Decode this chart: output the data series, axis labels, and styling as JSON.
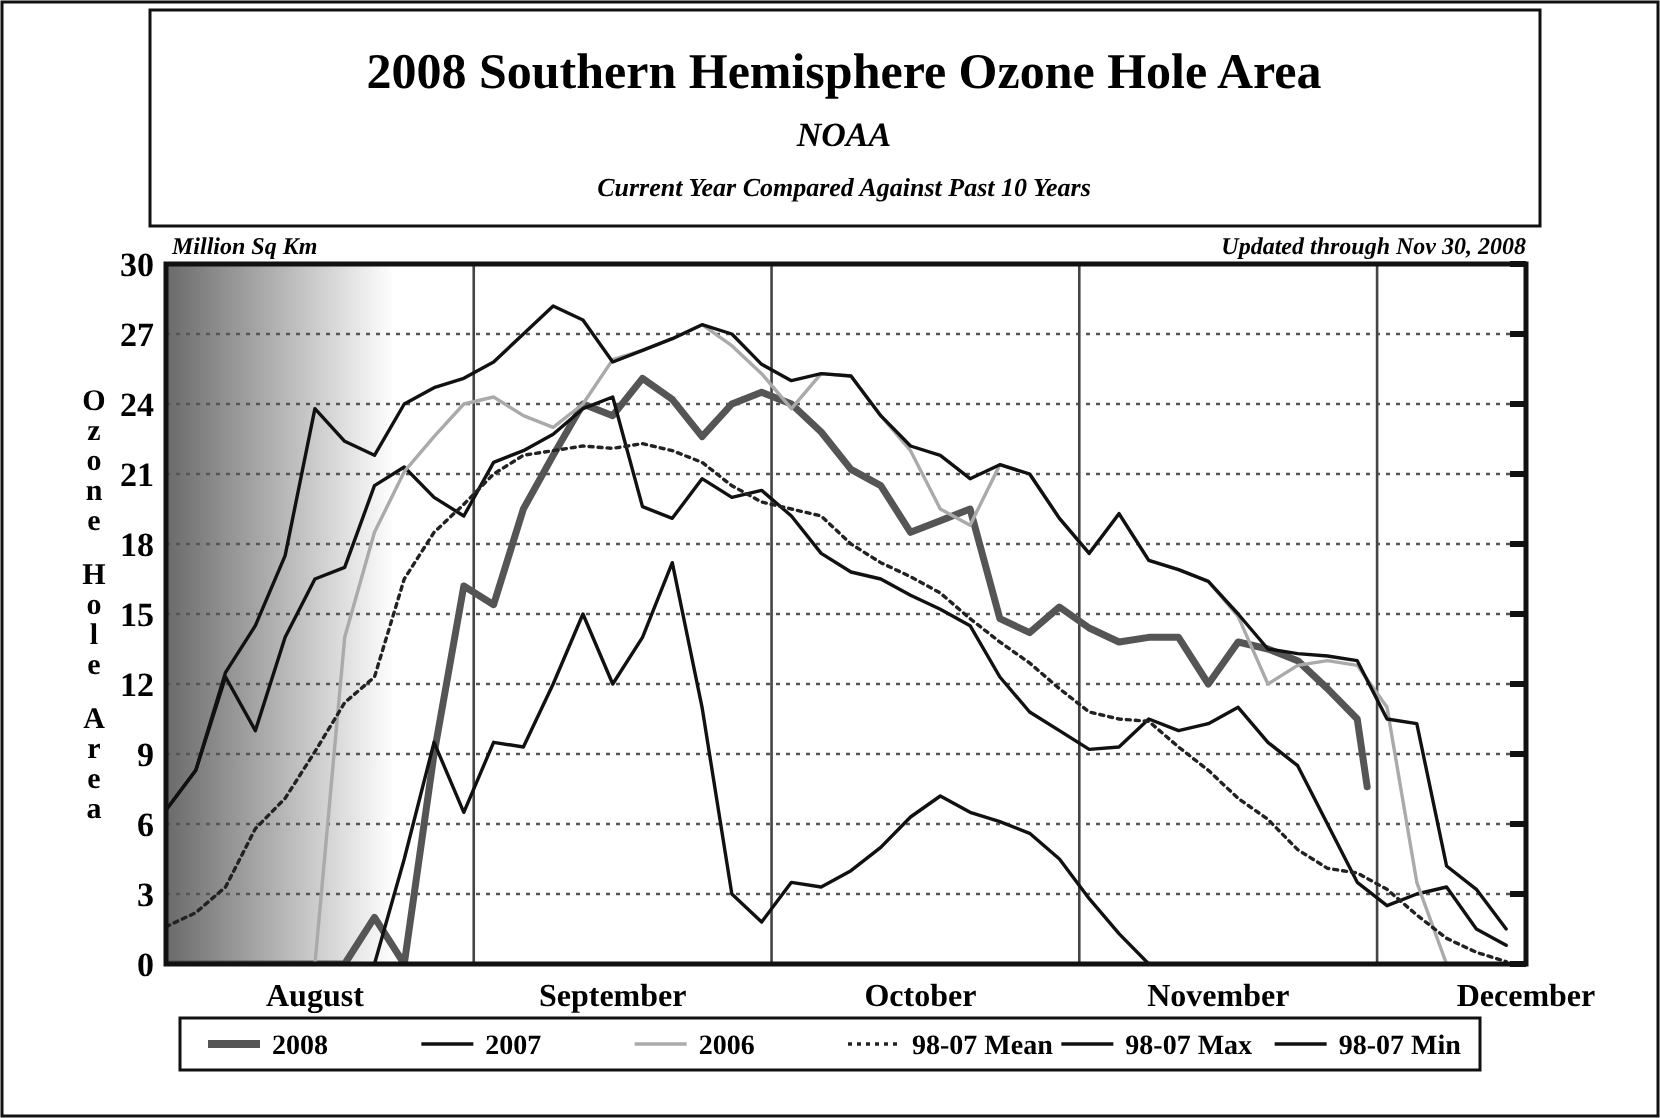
{
  "chart_data": {
    "type": "line",
    "title": "2008 Southern Hemisphere Ozone Hole Area",
    "subtitle": "NOAA",
    "ylabel": "Ozone Hole Area",
    "annotations": [
      "Current Year Compared Against Past 10 Years",
      "Million Sq Km",
      "Updated through Nov 30, 2008"
    ],
    "x": [
      "2008-08-01",
      "2008-08-04",
      "2008-08-07",
      "2008-08-10",
      "2008-08-13",
      "2008-08-16",
      "2008-08-19",
      "2008-08-22",
      "2008-08-25",
      "2008-08-28",
      "2008-08-31",
      "2008-09-03",
      "2008-09-06",
      "2008-09-09",
      "2008-09-12",
      "2008-09-15",
      "2008-09-18",
      "2008-09-21",
      "2008-09-24",
      "2008-09-27",
      "2008-09-30",
      "2008-10-03",
      "2008-10-06",
      "2008-10-09",
      "2008-10-12",
      "2008-10-15",
      "2008-10-18",
      "2008-10-21",
      "2008-10-24",
      "2008-10-27",
      "2008-10-30",
      "2008-11-02",
      "2008-11-05",
      "2008-11-08",
      "2008-11-11",
      "2008-11-14",
      "2008-11-17",
      "2008-11-20",
      "2008-11-23",
      "2008-11-26",
      "2008-11-29",
      "2008-12-02",
      "2008-12-05",
      "2008-12-08",
      "2008-12-11",
      "2008-12-14"
    ],
    "series": [
      {
        "name": "2008",
        "color": "#555555",
        "x": [
          "2008-08-01",
          "2008-08-04",
          "2008-08-07",
          "2008-08-10",
          "2008-08-13",
          "2008-08-16",
          "2008-08-19",
          "2008-08-22",
          "2008-08-25",
          "2008-08-28",
          "2008-08-31",
          "2008-09-03",
          "2008-09-06",
          "2008-09-09",
          "2008-09-12",
          "2008-09-15",
          "2008-09-18",
          "2008-09-21",
          "2008-09-24",
          "2008-09-27",
          "2008-09-30",
          "2008-10-03",
          "2008-10-06",
          "2008-10-09",
          "2008-10-12",
          "2008-10-15",
          "2008-10-18",
          "2008-10-21",
          "2008-10-24",
          "2008-10-27",
          "2008-10-30",
          "2008-11-02",
          "2008-11-05",
          "2008-11-08",
          "2008-11-11",
          "2008-11-14",
          "2008-11-17",
          "2008-11-20",
          "2008-11-23",
          "2008-11-26",
          "2008-11-29",
          "2008-11-30"
        ],
        "values": [
          0,
          0,
          0,
          0,
          0,
          0,
          0,
          2.0,
          0,
          9.0,
          16.2,
          15.4,
          19.5,
          21.8,
          24.0,
          23.5,
          25.1,
          24.2,
          22.6,
          24.0,
          24.5,
          24.0,
          22.8,
          21.2,
          20.5,
          18.5,
          19.0,
          19.5,
          14.8,
          14.2,
          15.3,
          14.4,
          13.8,
          14.0,
          14.0,
          12.0,
          13.8,
          13.5,
          13.0,
          11.8,
          10.5,
          7.6
        ]
      },
      {
        "name": "2007",
        "color": "#111111",
        "values": [
          6.6,
          8.3,
          12.3,
          10.0,
          14.0,
          16.5,
          17.0,
          20.5,
          21.3,
          20.0,
          19.2,
          21.5,
          22.0,
          22.7,
          23.8,
          24.3,
          19.6,
          19.1,
          20.8,
          20.0,
          20.3,
          19.2,
          17.6,
          16.8,
          16.5,
          15.8,
          15.2,
          14.5,
          12.3,
          10.8,
          10.0,
          9.2,
          9.3,
          10.5,
          10.0,
          10.3,
          11.0,
          9.5,
          8.5,
          6.0,
          3.5,
          2.5,
          3.0,
          3.3,
          1.5,
          0.8
        ]
      },
      {
        "name": "2006",
        "color": "#aaaaaa",
        "values": [
          0,
          0,
          0,
          0,
          0,
          0,
          14.0,
          18.5,
          21.1,
          22.6,
          24.0,
          24.3,
          23.5,
          23.0,
          24.0,
          25.9,
          26.3,
          26.8,
          27.4,
          26.5,
          25.3,
          23.8,
          25.3,
          25.2,
          23.5,
          22.0,
          19.5,
          18.8,
          21.4,
          21.0,
          19.1,
          17.6,
          19.3,
          17.3,
          16.9,
          16.4,
          14.9,
          12.0,
          12.8,
          13.0,
          12.8,
          11.0,
          3.5,
          0,
          0,
          0
        ]
      },
      {
        "name": "98-07 Mean",
        "color": "#222222",
        "line_style": "dotted",
        "values": [
          1.6,
          2.2,
          3.3,
          5.8,
          7.1,
          9.1,
          11.2,
          12.3,
          16.5,
          18.5,
          19.7,
          21.0,
          21.8,
          22.0,
          22.2,
          22.1,
          22.3,
          22.0,
          21.5,
          20.5,
          19.8,
          19.5,
          19.2,
          18.0,
          17.2,
          16.6,
          15.9,
          14.8,
          13.8,
          12.9,
          11.8,
          10.8,
          10.5,
          10.4,
          9.3,
          8.3,
          7.1,
          6.2,
          4.9,
          4.1,
          3.9,
          3.2,
          2.1,
          1.1,
          0.5,
          0.1
        ]
      },
      {
        "name": "98-07 Max",
        "color": "#111111",
        "values": [
          6.6,
          8.3,
          12.5,
          14.5,
          17.5,
          23.8,
          22.4,
          21.8,
          24.0,
          24.7,
          25.1,
          25.8,
          27.0,
          28.2,
          27.6,
          25.8,
          26.3,
          26.8,
          27.4,
          27.0,
          25.7,
          25.0,
          25.3,
          25.2,
          23.5,
          22.2,
          21.8,
          20.8,
          21.4,
          21.0,
          19.1,
          17.6,
          19.3,
          17.3,
          16.9,
          16.4,
          15.0,
          13.5,
          13.3,
          13.2,
          13.0,
          10.5,
          10.3,
          4.2,
          3.2,
          1.5
        ]
      },
      {
        "name": "98-07 Min",
        "color": "#111111",
        "values": [
          0,
          0,
          0,
          0,
          0,
          0,
          0,
          0,
          4.5,
          9.5,
          6.5,
          9.5,
          9.3,
          12.0,
          15.0,
          12.0,
          14.0,
          17.2,
          11.0,
          3.0,
          1.8,
          3.5,
          3.3,
          4.0,
          5.0,
          6.3,
          7.2,
          6.5,
          6.1,
          5.6,
          4.5,
          2.8,
          1.3,
          0,
          0,
          0,
          0,
          0,
          0,
          0,
          0,
          0,
          0,
          0,
          0,
          0
        ]
      }
    ],
    "xlim": [
      "2008-08-01",
      "2008-12-16"
    ],
    "xticks": [
      {
        "value": "2008-08-16",
        "label": "August"
      },
      {
        "value": "2008-09-15",
        "label": "September"
      },
      {
        "value": "2008-10-16",
        "label": "October"
      },
      {
        "value": "2008-11-15",
        "label": "November"
      },
      {
        "value": "2008-12-16",
        "label": "December"
      }
    ],
    "ylim": [
      0,
      30
    ],
    "yticks": [
      0,
      3,
      6,
      9,
      12,
      15,
      18,
      21,
      24,
      27,
      30
    ],
    "ref_lines": [
      {
        "axis": "x",
        "value": "2008-09-01",
        "color": "#444444"
      },
      {
        "axis": "x",
        "value": "2008-10-01",
        "color": "#444444"
      },
      {
        "axis": "x",
        "value": "2008-11-01",
        "color": "#444444"
      },
      {
        "axis": "x",
        "value": "2008-12-01",
        "color": "#444444"
      }
    ],
    "bands": [
      {
        "axis": "x",
        "from": "2008-08-01",
        "to": "2008-08-24",
        "color": "#6a6a6a"
      }
    ],
    "grid": "y",
    "legend": "bottom",
    "marker": "none",
    "line_style": "solid"
  }
}
